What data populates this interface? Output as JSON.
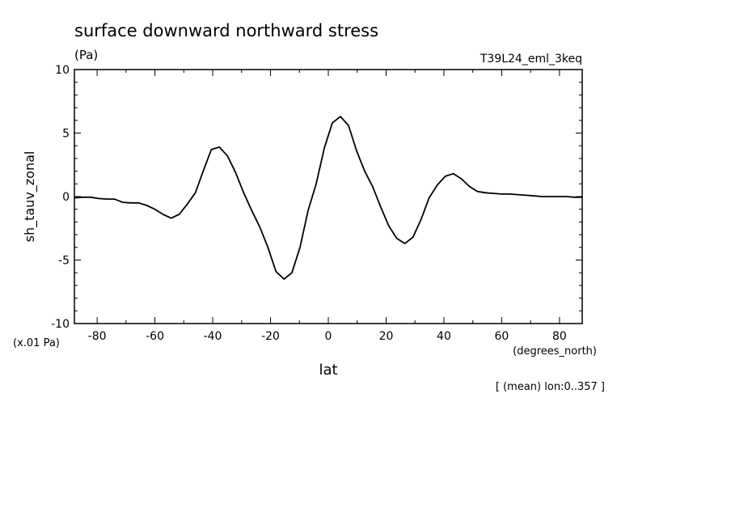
{
  "chart_data": {
    "type": "line",
    "title": "surface downward northward stress",
    "units": "(Pa)",
    "run_label": "T39L24_eml_3keq",
    "ylabel": "sh_tauv_zonal",
    "yscale_note": "(x.01 Pa)",
    "xlabel": "lat",
    "xunits": "(degrees_north)",
    "footer": "[ (mean) lon:0..357 ]",
    "xlim": [
      -87.86,
      87.86
    ],
    "ylim": [
      -10,
      10
    ],
    "xticks": [
      -80,
      -60,
      -40,
      -20,
      0,
      20,
      40,
      60,
      80
    ],
    "xtick_labels": [
      "-80",
      "-60",
      "-40",
      "-20",
      "0",
      "20",
      "40",
      "60",
      "80"
    ],
    "yticks": [
      -10,
      -5,
      0,
      5,
      10
    ],
    "ytick_labels": [
      "-10",
      "-5",
      "0",
      "5",
      "10"
    ],
    "grid": false,
    "line_color": "#000000",
    "series": [
      {
        "x": [
          -87.86,
          -85.1,
          -82.3,
          -79.5,
          -76.7,
          -74.0,
          -71.2,
          -68.4,
          -65.6,
          -62.8,
          -60.0,
          -57.2,
          -54.4,
          -51.6,
          -48.8,
          -46.0,
          -43.3,
          -40.5,
          -37.7,
          -34.9,
          -32.1,
          -29.3,
          -26.5,
          -23.7,
          -20.9,
          -18.1,
          -15.3,
          -12.6,
          -9.8,
          -7.0,
          -4.2,
          -1.4,
          1.4,
          4.2,
          7.0,
          9.8,
          12.6,
          15.3,
          18.1,
          20.9,
          23.7,
          26.5,
          29.3,
          32.1,
          34.9,
          37.7,
          40.5,
          43.3,
          46.0,
          48.8,
          51.6,
          54.4,
          57.2,
          60.0,
          62.8,
          65.6,
          68.4,
          71.2,
          74.0,
          76.7,
          79.5,
          82.3,
          85.1,
          87.86
        ],
        "y": [
          -0.1,
          -0.05,
          -0.05,
          -0.15,
          -0.2,
          -0.2,
          -0.45,
          -0.5,
          -0.5,
          -0.7,
          -1.0,
          -1.4,
          -1.7,
          -1.4,
          -0.6,
          0.3,
          2.0,
          3.7,
          3.9,
          3.2,
          1.9,
          0.3,
          -1.1,
          -2.4,
          -4.0,
          -5.9,
          -6.5,
          -6.0,
          -4.0,
          -1.1,
          1.0,
          3.8,
          5.8,
          6.3,
          5.6,
          3.6,
          2.0,
          0.8,
          -0.8,
          -2.3,
          -3.3,
          -3.7,
          -3.2,
          -1.8,
          -0.1,
          0.9,
          1.6,
          1.8,
          1.4,
          0.8,
          0.4,
          0.3,
          0.25,
          0.2,
          0.2,
          0.15,
          0.1,
          0.05,
          0.0,
          0.0,
          0.0,
          0.0,
          -0.05,
          -0.05
        ]
      }
    ]
  }
}
